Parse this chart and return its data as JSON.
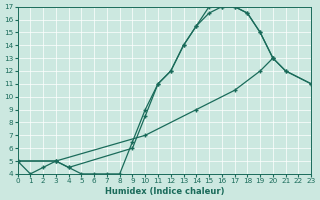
{
  "xlabel": "Humidex (Indice chaleur)",
  "bg_color": "#cce8e0",
  "line_color": "#1a6b5a",
  "xlim": [
    0,
    23
  ],
  "ylim": [
    4,
    17
  ],
  "xticks": [
    0,
    1,
    2,
    3,
    4,
    5,
    6,
    7,
    8,
    9,
    10,
    11,
    12,
    13,
    14,
    15,
    16,
    17,
    18,
    19,
    20,
    21,
    22,
    23
  ],
  "yticks": [
    4,
    5,
    6,
    7,
    8,
    9,
    10,
    11,
    12,
    13,
    14,
    15,
    16,
    17
  ],
  "line1_x": [
    0,
    1,
    2,
    3,
    4,
    5,
    6,
    7,
    8,
    9,
    10,
    11,
    12,
    13,
    14,
    15,
    16,
    17,
    18,
    19,
    20
  ],
  "line1_y": [
    5,
    4,
    4.5,
    5,
    4.5,
    4,
    4,
    4,
    4,
    6.5,
    9,
    11,
    12,
    14,
    15.5,
    17,
    17,
    17,
    16.5,
    15,
    13
  ],
  "line2_x": [
    0,
    3,
    4,
    9,
    10,
    11,
    12,
    13,
    14,
    15,
    16,
    17,
    18,
    19,
    20,
    21,
    23
  ],
  "line2_y": [
    5,
    5,
    4.5,
    6,
    8.5,
    11,
    12,
    14,
    15.5,
    16.5,
    17,
    17,
    16.5,
    15,
    13,
    12,
    11
  ],
  "line3_x": [
    0,
    3,
    10,
    14,
    17,
    19,
    20,
    21,
    23
  ],
  "line3_y": [
    5,
    5,
    7,
    9,
    10.5,
    12,
    13,
    12,
    11
  ]
}
